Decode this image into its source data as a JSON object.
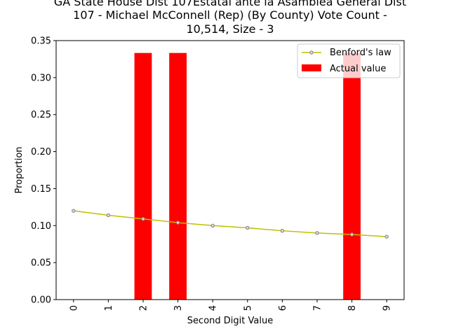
{
  "chart_data": {
    "type": "bar",
    "title": [
      "GA State House Dist 107Estatal ante la Asamblea General Dist",
      "107 - Michael McConnell (Rep) (By County) Vote Count -",
      "10,514, Size - 3"
    ],
    "xlabel": "Second Digit Value",
    "ylabel": "Proportion",
    "categories": [
      "0",
      "1",
      "2",
      "3",
      "4",
      "5",
      "6",
      "7",
      "8",
      "9"
    ],
    "ylim": [
      0,
      0.35
    ],
    "yticks": [
      "0.00",
      "0.05",
      "0.10",
      "0.15",
      "0.20",
      "0.25",
      "0.30",
      "0.35"
    ],
    "grid": false,
    "legend_position": "top-right",
    "series": [
      {
        "name": "Benford's law",
        "type": "line",
        "color": "#bfbf00",
        "marker_edge_color": "#808080",
        "values": [
          0.12,
          0.114,
          0.109,
          0.104,
          0.1,
          0.097,
          0.093,
          0.09,
          0.088,
          0.085
        ]
      },
      {
        "name": "Actual value",
        "type": "bar",
        "color": "#ff0000",
        "values": [
          0,
          0,
          0.3333,
          0.3333,
          0,
          0,
          0,
          0,
          0.3333,
          0
        ]
      }
    ]
  }
}
